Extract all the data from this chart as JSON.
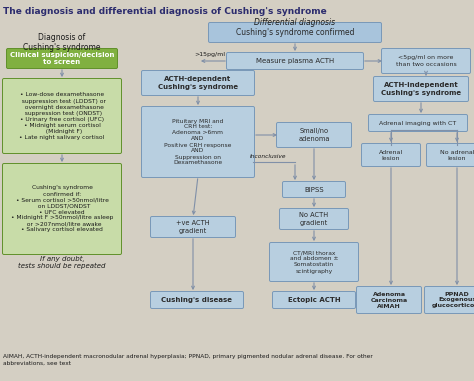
{
  "bg_color": "#d4cfc3",
  "title": "The diagnosis and differential diagnosis of Cushing's syndrome",
  "title_color": "#2c2c6e",
  "title_fontsize": 6.5,
  "diff_diag_label": "Differential diagnosis",
  "footer": "AIMAH, ACTH-independent macronodular adrenal hyperplasia; PPNAD, primary pigmented nodular adrenal disease. For other\nabbreviations, see text",
  "box_blue_light": "#b8cfe0",
  "box_blue_mid": "#a8c4dc",
  "box_green_light": "#c8dca8",
  "box_green_dark": "#80b040",
  "box_outline_blue": "#7898b8",
  "box_outline_green": "#60902a",
  "text_dark": "#1a1a1a",
  "text_bold_dark": "#2a2a2a",
  "arrow_color": "#8090a8"
}
